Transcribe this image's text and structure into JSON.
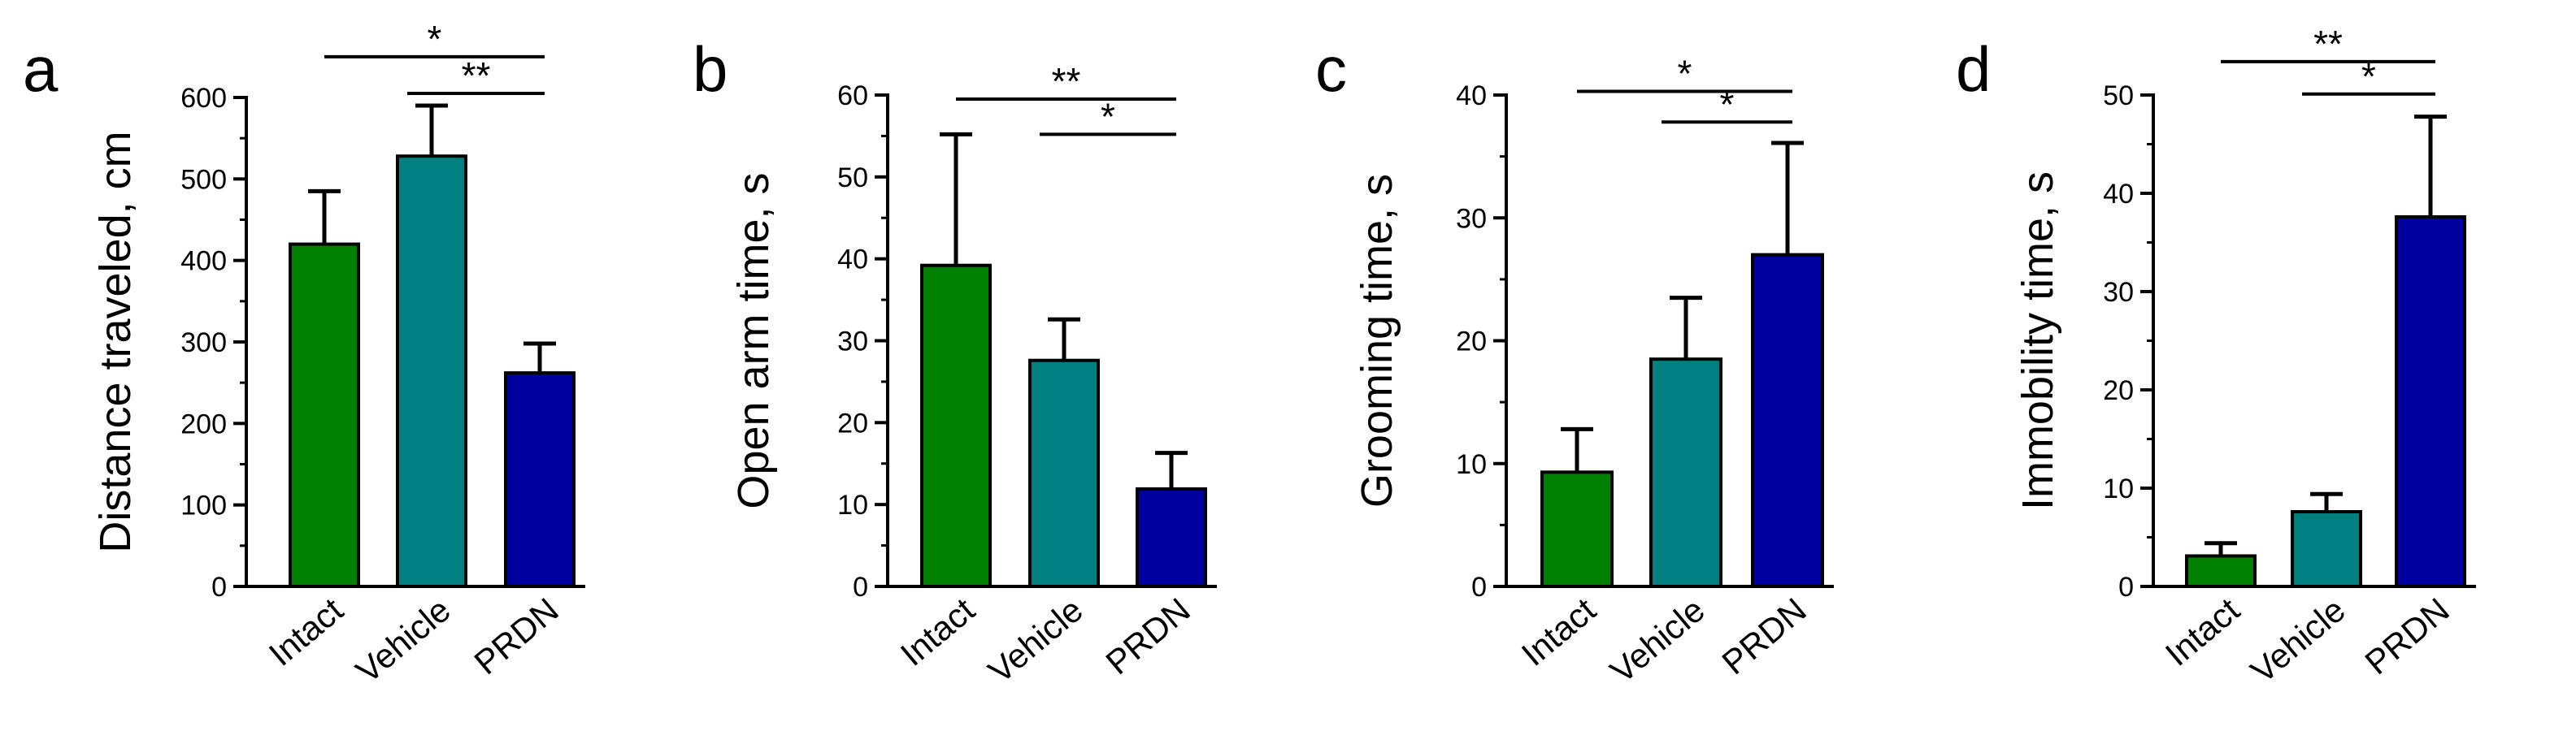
{
  "figure": {
    "bar_outline_color": "#000000",
    "axis_color": "#000000"
  },
  "chart_data": [
    {
      "type": "bar",
      "panel": "a",
      "title": "",
      "xlabel": "",
      "ylabel": "Distance traveled, cm",
      "ylim": [
        0,
        600
      ],
      "yticks": [
        0,
        100,
        200,
        300,
        400,
        500,
        600
      ],
      "ytick_labels": [
        "0",
        "100",
        "200",
        "300",
        "400",
        "500",
        "600"
      ],
      "categories": [
        "Intact",
        "Vehicle",
        "PRDN"
      ],
      "values": [
        420,
        528,
        262
      ],
      "errors": [
        65,
        62,
        36
      ],
      "colors": [
        "#008000",
        "#008080",
        "#0000a0"
      ],
      "significance": [
        {
          "from": 0,
          "to": 2,
          "label": "*",
          "y": 650
        },
        {
          "from": 1,
          "to": 2,
          "label": "**",
          "y": 605
        }
      ]
    },
    {
      "type": "bar",
      "panel": "b",
      "title": "",
      "xlabel": "",
      "ylabel": "Open arm time, s",
      "ylim": [
        0,
        60
      ],
      "yticks": [
        0,
        10,
        20,
        30,
        40,
        50,
        60
      ],
      "ytick_labels": [
        "0",
        "10",
        "20",
        "30",
        "40",
        "50",
        "60"
      ],
      "categories": [
        "Intact",
        "Vehicle",
        "PRDN"
      ],
      "values": [
        39.2,
        27.6,
        11.9
      ],
      "errors": [
        16,
        5,
        4.4
      ],
      "colors": [
        "#008000",
        "#008080",
        "#0000a0"
      ],
      "significance": [
        {
          "from": 0,
          "to": 2,
          "label": "**",
          "y": 59.5
        },
        {
          "from": 1,
          "to": 2,
          "label": "*",
          "y": 55.2
        }
      ]
    },
    {
      "type": "bar",
      "panel": "c",
      "title": "",
      "xlabel": "",
      "ylabel": "Grooming time, s",
      "ylim": [
        0,
        40
      ],
      "yticks": [
        0,
        10,
        20,
        30,
        40
      ],
      "ytick_labels": [
        "0",
        "10",
        "20",
        "30",
        "40"
      ],
      "categories": [
        "Intact",
        "Vehicle",
        "PRDN"
      ],
      "values": [
        9.3,
        18.5,
        27
      ],
      "errors": [
        3.5,
        5,
        9.1
      ],
      "colors": [
        "#008000",
        "#008080",
        "#0000a0"
      ],
      "significance": [
        {
          "from": 0,
          "to": 2,
          "label": "*",
          "y": 40.3
        },
        {
          "from": 1,
          "to": 2,
          "label": "*",
          "y": 37.8
        }
      ]
    },
    {
      "type": "bar",
      "panel": "d",
      "title": "",
      "xlabel": "",
      "ylabel": "Immobility time, s",
      "ylim": [
        0,
        50
      ],
      "yticks": [
        0,
        10,
        20,
        30,
        40,
        50
      ],
      "ytick_labels": [
        "0",
        "10",
        "20",
        "30",
        "40",
        "50"
      ],
      "categories": [
        "Intact",
        "Vehicle",
        "PRDN"
      ],
      "values": [
        3.1,
        7.6,
        37.6
      ],
      "errors": [
        1.3,
        1.8,
        10.2
      ],
      "colors": [
        "#008000",
        "#008080",
        "#0000a0"
      ],
      "significance": [
        {
          "from": 0,
          "to": 2,
          "label": "**",
          "y": 53.4
        },
        {
          "from": 1,
          "to": 2,
          "label": "*",
          "y": 50.1
        }
      ]
    }
  ]
}
